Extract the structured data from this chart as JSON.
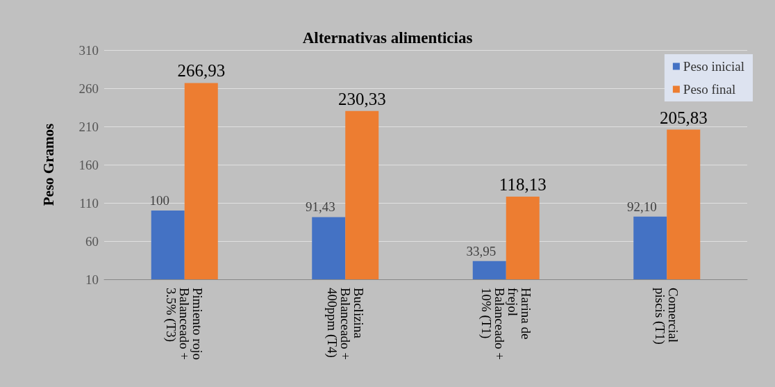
{
  "chart_data": {
    "type": "bar",
    "title": "Alternativas alimenticias",
    "ylabel": "Peso Gramos",
    "categories": [
      "Pimiento rojo\nBalanceado +\n3.5% (T3)",
      "Buclizina\nBalanceado +\n400ppm (T4)",
      "Harina de\nfrejol\nBalanceado +\n10% (T1)",
      "Comercial\npiscis (T1)"
    ],
    "series": [
      {
        "name": "Peso inicial",
        "color": "#4472c4",
        "values": [
          100,
          91.43,
          33.95,
          92.1
        ],
        "value_labels": [
          "100",
          "91,43",
          "33,95",
          "92,10"
        ]
      },
      {
        "name": "Peso final",
        "color": "#ed7d31",
        "values": [
          266.93,
          230.33,
          118.13,
          205.83
        ],
        "value_labels": [
          "266,93",
          "230,33",
          "118,13",
          "205,83"
        ]
      }
    ],
    "ylim": [
      10,
      310
    ],
    "yticks": [
      10,
      60,
      110,
      160,
      210,
      260,
      310
    ],
    "grid": "y",
    "legend": "top right"
  }
}
